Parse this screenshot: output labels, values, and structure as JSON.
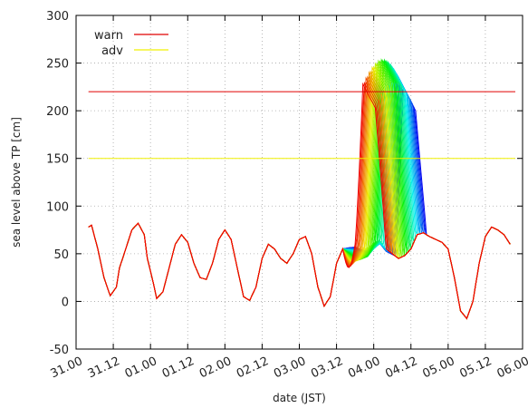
{
  "chart_data": {
    "type": "line",
    "xlabel": "date (JST)",
    "ylabel": "sea level above TP [cm]",
    "ylim": [
      -50,
      300
    ],
    "yticks": [
      -50,
      0,
      50,
      100,
      150,
      200,
      250,
      300
    ],
    "xticks": [
      "31.00",
      "31.12",
      "01.00",
      "01.12",
      "02.00",
      "02.12",
      "03.00",
      "03.12",
      "04.00",
      "04.12",
      "05.00",
      "05.12",
      "06.00"
    ],
    "xlim": [
      0,
      144
    ],
    "grid": true,
    "legend_position": "top-left",
    "thresholds": [
      {
        "name": "warn",
        "value": 220,
        "color": "#e00000"
      },
      {
        "name": "adv",
        "value": 150,
        "color": "#f0f000"
      }
    ],
    "base_series": {
      "x": [
        4,
        5,
        7,
        9,
        11,
        13,
        14,
        16,
        18,
        20,
        22,
        23,
        25,
        26,
        28,
        30,
        32,
        34,
        36,
        38,
        40,
        42,
        44,
        46,
        48,
        50,
        52,
        54,
        56,
        58,
        60,
        62,
        64,
        66,
        68,
        70,
        72,
        74,
        76,
        78,
        80,
        82,
        84,
        86,
        88,
        90,
        92,
        94,
        96,
        98,
        100,
        102,
        104,
        106,
        108,
        110,
        112,
        114,
        116,
        118,
        120,
        122,
        124,
        126,
        128,
        130,
        132,
        134,
        136,
        138,
        140
      ],
      "y": [
        78,
        80,
        55,
        25,
        6,
        15,
        35,
        55,
        75,
        82,
        70,
        45,
        18,
        3,
        10,
        35,
        60,
        70,
        62,
        40,
        25,
        23,
        40,
        65,
        75,
        65,
        35,
        5,
        1,
        15,
        45,
        60,
        55,
        45,
        40,
        50,
        65,
        68,
        50,
        15,
        -5,
        5,
        40,
        55,
        58,
        60,
        58,
        57,
        62,
        65,
        55,
        50,
        45,
        48,
        55,
        70,
        72,
        68,
        65,
        62,
        55,
        25,
        -10,
        -18,
        0,
        40,
        68,
        78,
        75,
        70,
        60
      ]
    },
    "ensemble": {
      "members": 40,
      "color_start": "red",
      "color_end": "blue",
      "surge_onset": [
        90,
        103
      ],
      "surge_peak": [
        225,
        255
      ]
    }
  }
}
